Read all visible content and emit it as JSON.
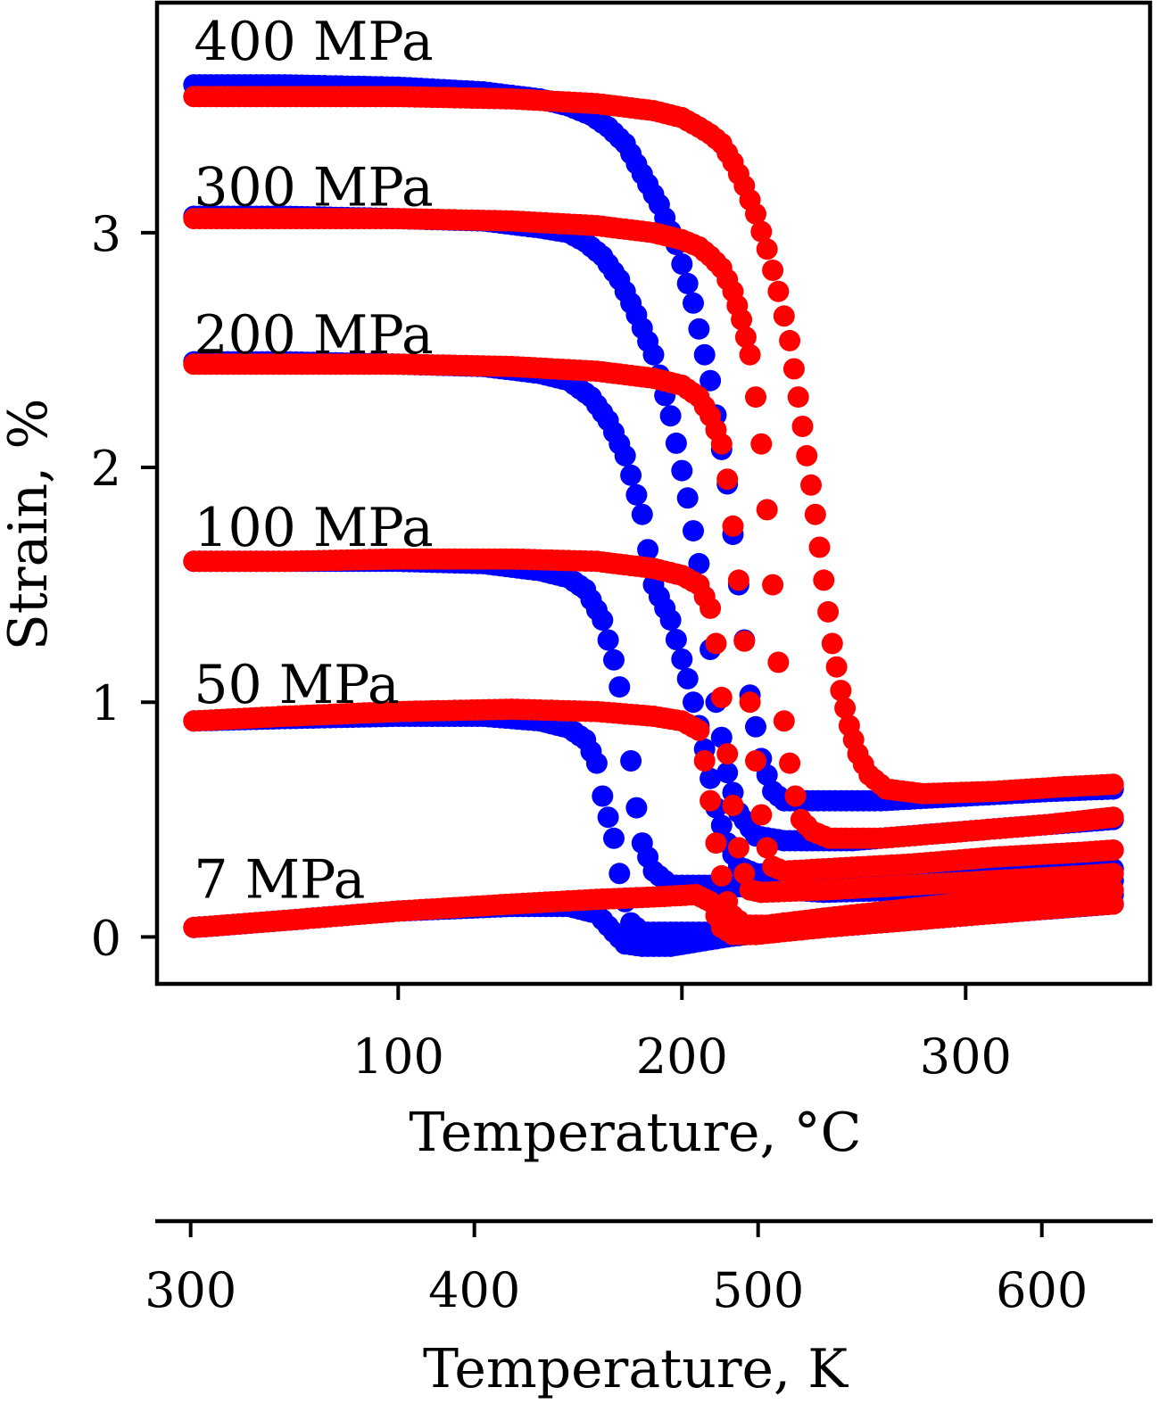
{
  "chart_data": {
    "type": "scatter",
    "xlabel": "Temperature, °C",
    "ylabel": "Strain, %",
    "secondary_xlabel": "Temperature, K",
    "xlim": [
      15,
      365
    ],
    "ylim": [
      -0.2,
      3.98
    ],
    "secondary_xlim": [
      288.15,
      638.15
    ],
    "x_ticks": [
      {
        "value": 100,
        "label": "100"
      },
      {
        "value": 200,
        "label": "200"
      },
      {
        "value": 300,
        "label": "300"
      }
    ],
    "y_ticks": [
      {
        "value": 0,
        "label": "0"
      },
      {
        "value": 1,
        "label": "1"
      },
      {
        "value": 2,
        "label": "2"
      },
      {
        "value": 3,
        "label": "3"
      }
    ],
    "secondary_x_ticks": [
      {
        "value": 300,
        "label": "300"
      },
      {
        "value": 400,
        "label": "400"
      },
      {
        "value": 500,
        "label": "500"
      },
      {
        "value": 600,
        "label": "600"
      }
    ],
    "colors": {
      "cooling": "#0000ff",
      "heating": "#ff0000"
    },
    "curves": [
      {
        "label": "400 MPa",
        "label_at": [
          28,
          3.82
        ],
        "cooling": [
          [
            28,
            3.63
          ],
          [
            60,
            3.63
          ],
          [
            100,
            3.62
          ],
          [
            130,
            3.6
          ],
          [
            150,
            3.57
          ],
          [
            160,
            3.54
          ],
          [
            168,
            3.5
          ],
          [
            174,
            3.45
          ],
          [
            180,
            3.38
          ],
          [
            186,
            3.25
          ],
          [
            192,
            3.12
          ],
          [
            198,
            2.95
          ],
          [
            204,
            2.7
          ],
          [
            210,
            2.37
          ],
          [
            216,
            1.93
          ],
          [
            220,
            1.5
          ],
          [
            224,
            1.03
          ],
          [
            228,
            0.76
          ],
          [
            232,
            0.62
          ],
          [
            236,
            0.58
          ],
          [
            250,
            0.58
          ],
          [
            270,
            0.58
          ],
          [
            300,
            0.6
          ],
          [
            330,
            0.62
          ],
          [
            352,
            0.63
          ]
        ],
        "heating": [
          [
            28,
            3.58
          ],
          [
            60,
            3.58
          ],
          [
            100,
            3.58
          ],
          [
            140,
            3.57
          ],
          [
            170,
            3.55
          ],
          [
            190,
            3.52
          ],
          [
            200,
            3.49
          ],
          [
            206,
            3.45
          ],
          [
            210,
            3.42
          ],
          [
            214,
            3.38
          ],
          [
            218,
            3.3
          ],
          [
            222,
            3.2
          ],
          [
            226,
            3.08
          ],
          [
            230,
            2.93
          ],
          [
            234,
            2.75
          ],
          [
            238,
            2.54
          ],
          [
            241,
            2.3
          ],
          [
            244,
            2.05
          ],
          [
            247,
            1.8
          ],
          [
            250,
            1.52
          ],
          [
            253,
            1.25
          ],
          [
            256,
            1.05
          ],
          [
            259,
            0.9
          ],
          [
            262,
            0.78
          ],
          [
            266,
            0.69
          ],
          [
            272,
            0.63
          ],
          [
            285,
            0.61
          ],
          [
            310,
            0.62
          ],
          [
            335,
            0.64
          ],
          [
            352,
            0.65
          ]
        ]
      },
      {
        "label": "300 MPa",
        "label_at": [
          28,
          3.2
        ],
        "cooling": [
          [
            28,
            3.07
          ],
          [
            60,
            3.07
          ],
          [
            100,
            3.06
          ],
          [
            130,
            3.05
          ],
          [
            150,
            3.02
          ],
          [
            160,
            3.0
          ],
          [
            166,
            2.96
          ],
          [
            172,
            2.9
          ],
          [
            178,
            2.8
          ],
          [
            184,
            2.65
          ],
          [
            190,
            2.48
          ],
          [
            196,
            2.22
          ],
          [
            202,
            1.87
          ],
          [
            208,
            1.45
          ],
          [
            212,
            1.0
          ],
          [
            216,
            0.7
          ],
          [
            220,
            0.53
          ],
          [
            226,
            0.43
          ],
          [
            236,
            0.41
          ],
          [
            260,
            0.41
          ],
          [
            290,
            0.44
          ],
          [
            320,
            0.47
          ],
          [
            352,
            0.5
          ]
        ],
        "heating": [
          [
            28,
            3.06
          ],
          [
            60,
            3.06
          ],
          [
            100,
            3.06
          ],
          [
            140,
            3.05
          ],
          [
            170,
            3.03
          ],
          [
            190,
            3.0
          ],
          [
            200,
            2.97
          ],
          [
            206,
            2.94
          ],
          [
            210,
            2.9
          ],
          [
            214,
            2.85
          ],
          [
            218,
            2.75
          ],
          [
            221,
            2.63
          ],
          [
            224,
            2.48
          ],
          [
            226,
            2.3
          ],
          [
            228,
            2.1
          ],
          [
            230,
            1.82
          ],
          [
            232,
            1.5
          ],
          [
            234,
            1.17
          ],
          [
            236,
            0.92
          ],
          [
            238,
            0.74
          ],
          [
            240,
            0.6
          ],
          [
            242,
            0.5
          ],
          [
            246,
            0.45
          ],
          [
            252,
            0.42
          ],
          [
            270,
            0.42
          ],
          [
            300,
            0.45
          ],
          [
            330,
            0.48
          ],
          [
            352,
            0.51
          ]
        ]
      },
      {
        "label": "200 MPa",
        "label_at": [
          28,
          2.57
        ],
        "cooling": [
          [
            28,
            2.45
          ],
          [
            60,
            2.45
          ],
          [
            100,
            2.44
          ],
          [
            130,
            2.43
          ],
          [
            150,
            2.4
          ],
          [
            160,
            2.37
          ],
          [
            168,
            2.3
          ],
          [
            174,
            2.2
          ],
          [
            180,
            2.05
          ],
          [
            186,
            1.8
          ],
          [
            190,
            1.5
          ],
          [
            196,
            1.35
          ],
          [
            202,
            1.1
          ],
          [
            208,
            0.8
          ],
          [
            212,
            0.55
          ],
          [
            216,
            0.4
          ],
          [
            220,
            0.3
          ],
          [
            226,
            0.27
          ],
          [
            240,
            0.26
          ],
          [
            270,
            0.26
          ],
          [
            300,
            0.27
          ],
          [
            330,
            0.28
          ],
          [
            352,
            0.29
          ]
        ],
        "heating": [
          [
            28,
            2.44
          ],
          [
            60,
            2.44
          ],
          [
            100,
            2.44
          ],
          [
            140,
            2.43
          ],
          [
            170,
            2.41
          ],
          [
            190,
            2.38
          ],
          [
            200,
            2.35
          ],
          [
            206,
            2.3
          ],
          [
            210,
            2.22
          ],
          [
            214,
            2.1
          ],
          [
            216,
            1.95
          ],
          [
            218,
            1.75
          ],
          [
            220,
            1.52
          ],
          [
            222,
            1.26
          ],
          [
            224,
            1.0
          ],
          [
            226,
            0.75
          ],
          [
            228,
            0.52
          ],
          [
            230,
            0.38
          ],
          [
            232,
            0.3
          ],
          [
            236,
            0.28
          ],
          [
            250,
            0.29
          ],
          [
            280,
            0.31
          ],
          [
            310,
            0.34
          ],
          [
            340,
            0.36
          ],
          [
            352,
            0.37
          ]
        ]
      },
      {
        "label": "100 MPa",
        "label_at": [
          28,
          1.75
        ],
        "cooling": [
          [
            28,
            1.6
          ],
          [
            60,
            1.6
          ],
          [
            100,
            1.6
          ],
          [
            130,
            1.59
          ],
          [
            150,
            1.56
          ],
          [
            160,
            1.53
          ],
          [
            166,
            1.48
          ],
          [
            172,
            1.35
          ],
          [
            176,
            1.18
          ],
          [
            180,
            0.95
          ],
          [
            182,
            0.75
          ],
          [
            184,
            0.55
          ],
          [
            186,
            0.4
          ],
          [
            190,
            0.28
          ],
          [
            196,
            0.22
          ],
          [
            204,
            0.22
          ],
          [
            212,
            0.22
          ],
          [
            226,
            0.21
          ],
          [
            250,
            0.19
          ],
          [
            280,
            0.2
          ],
          [
            310,
            0.22
          ],
          [
            352,
            0.24
          ]
        ],
        "heating": [
          [
            28,
            1.6
          ],
          [
            60,
            1.6
          ],
          [
            100,
            1.61
          ],
          [
            140,
            1.61
          ],
          [
            170,
            1.6
          ],
          [
            190,
            1.57
          ],
          [
            200,
            1.54
          ],
          [
            206,
            1.5
          ],
          [
            210,
            1.4
          ],
          [
            212,
            1.25
          ],
          [
            214,
            1.02
          ],
          [
            216,
            0.78
          ],
          [
            218,
            0.56
          ],
          [
            220,
            0.38
          ],
          [
            222,
            0.27
          ],
          [
            224,
            0.2
          ],
          [
            228,
            0.19
          ],
          [
            250,
            0.2
          ],
          [
            280,
            0.22
          ],
          [
            310,
            0.24
          ],
          [
            340,
            0.26
          ],
          [
            352,
            0.27
          ]
        ]
      },
      {
        "label": "50 MPa",
        "label_at": [
          28,
          1.08
        ],
        "cooling": [
          [
            28,
            0.92
          ],
          [
            60,
            0.93
          ],
          [
            100,
            0.94
          ],
          [
            130,
            0.94
          ],
          [
            150,
            0.92
          ],
          [
            160,
            0.89
          ],
          [
            166,
            0.84
          ],
          [
            170,
            0.74
          ],
          [
            172,
            0.6
          ],
          [
            176,
            0.42
          ],
          [
            178,
            0.27
          ],
          [
            180,
            0.15
          ],
          [
            182,
            0.06
          ],
          [
            186,
            0.02
          ],
          [
            192,
            0.02
          ],
          [
            200,
            0.02
          ],
          [
            210,
            0.02
          ],
          [
            226,
            0.03
          ],
          [
            250,
            0.06
          ],
          [
            280,
            0.1
          ],
          [
            310,
            0.14
          ],
          [
            352,
            0.18
          ]
        ],
        "heating": [
          [
            28,
            0.92
          ],
          [
            60,
            0.94
          ],
          [
            100,
            0.96
          ],
          [
            140,
            0.97
          ],
          [
            170,
            0.96
          ],
          [
            190,
            0.94
          ],
          [
            200,
            0.92
          ],
          [
            206,
            0.88
          ],
          [
            208,
            0.75
          ],
          [
            210,
            0.58
          ],
          [
            212,
            0.4
          ],
          [
            214,
            0.26
          ],
          [
            216,
            0.15
          ],
          [
            218,
            0.09
          ],
          [
            222,
            0.05
          ],
          [
            230,
            0.05
          ],
          [
            250,
            0.08
          ],
          [
            280,
            0.12
          ],
          [
            310,
            0.16
          ],
          [
            340,
            0.19
          ],
          [
            352,
            0.2
          ]
        ]
      },
      {
        "label": "7 MPa",
        "label_at": [
          28,
          0.25
        ],
        "cooling": [
          [
            28,
            0.04
          ],
          [
            60,
            0.07
          ],
          [
            100,
            0.11
          ],
          [
            140,
            0.13
          ],
          [
            160,
            0.13
          ],
          [
            170,
            0.1
          ],
          [
            176,
            0.02
          ],
          [
            180,
            -0.03
          ],
          [
            186,
            -0.04
          ],
          [
            196,
            -0.04
          ],
          [
            206,
            -0.02
          ],
          [
            216,
            0.0
          ],
          [
            230,
            0.02
          ],
          [
            260,
            0.05
          ],
          [
            290,
            0.08
          ],
          [
            320,
            0.11
          ],
          [
            352,
            0.14
          ]
        ],
        "heating": [
          [
            28,
            0.04
          ],
          [
            60,
            0.07
          ],
          [
            100,
            0.11
          ],
          [
            140,
            0.14
          ],
          [
            170,
            0.16
          ],
          [
            190,
            0.17
          ],
          [
            205,
            0.18
          ],
          [
            210,
            0.15
          ],
          [
            212,
            0.09
          ],
          [
            214,
            0.04
          ],
          [
            218,
            0.01
          ],
          [
            226,
            0.01
          ],
          [
            250,
            0.04
          ],
          [
            280,
            0.07
          ],
          [
            310,
            0.1
          ],
          [
            340,
            0.13
          ],
          [
            352,
            0.14
          ]
        ]
      }
    ]
  }
}
